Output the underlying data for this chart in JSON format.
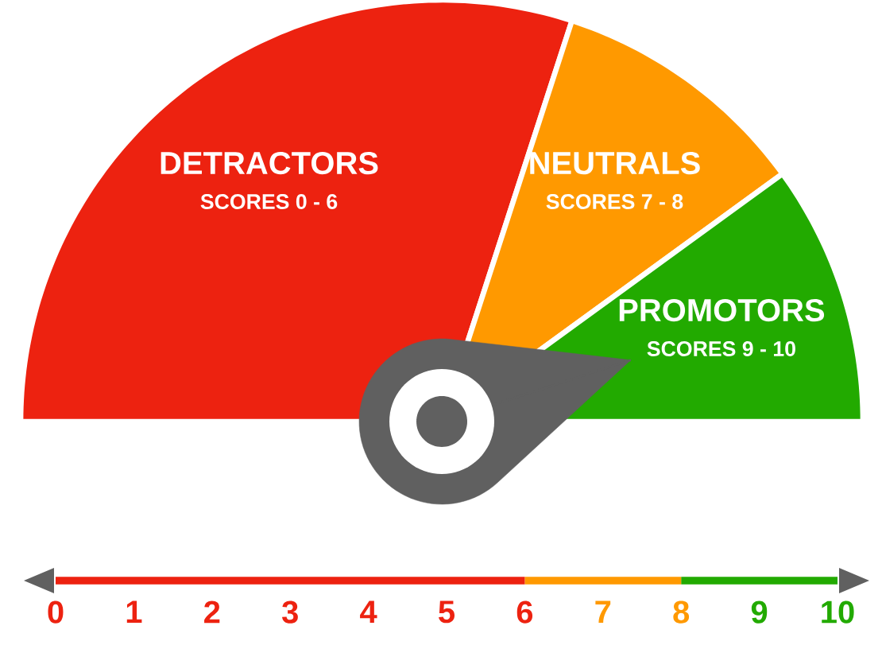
{
  "chart_data": [
    {
      "type": "pie",
      "categories": [
        "DETRACTORS",
        "NEUTRALS",
        "PROMOTORS"
      ],
      "values": [
        60,
        20,
        20
      ],
      "colors": [
        "#ed2210",
        "#ff9900",
        "#22aa00"
      ],
      "needle": "PROMOTORS",
      "annotations": [
        "SCORES 0 - 6",
        "SCORES 7 - 8",
        "SCORES 9 - 10"
      ]
    },
    {
      "type": "bar",
      "orientation": "horizontal",
      "stacked": true,
      "categories": [
        null
      ],
      "series": [
        {
          "color": "#ed2210",
          "values": [
            6
          ]
        },
        {
          "color": "#ff9900",
          "values": [
            2
          ]
        },
        {
          "color": "#22aa00",
          "values": [
            2
          ]
        }
      ],
      "xlim": [
        0,
        10
      ],
      "xticks": [
        0,
        1,
        2,
        3,
        4,
        5,
        6,
        7,
        8,
        9,
        10
      ]
    }
  ]
}
